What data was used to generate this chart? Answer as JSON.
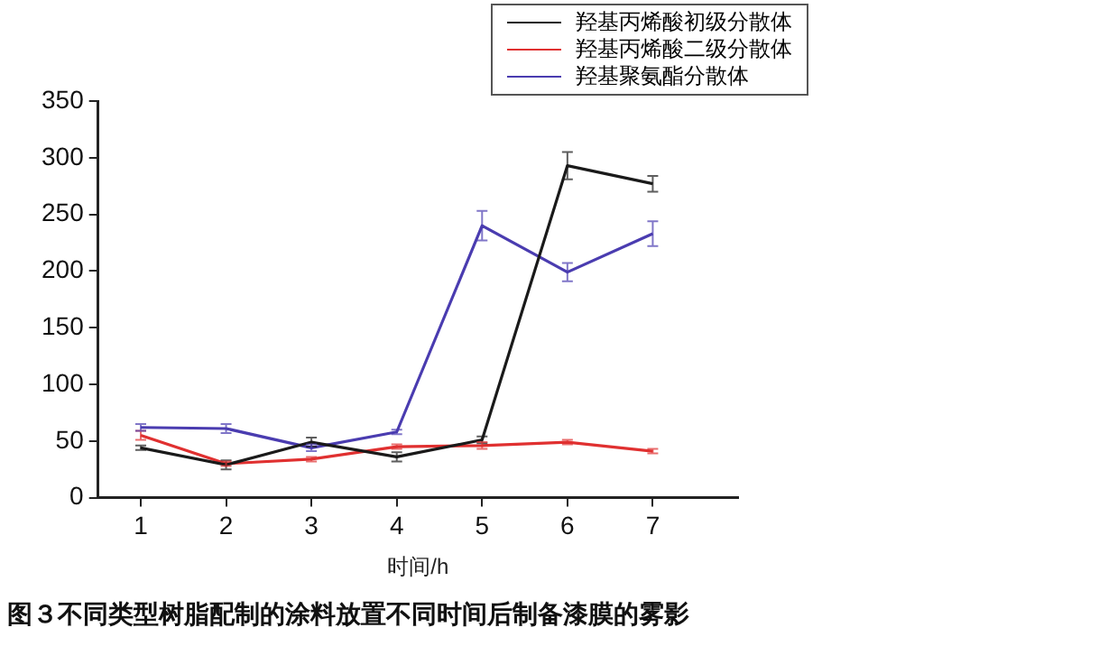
{
  "chart_data": {
    "type": "line",
    "xlabel": "时间/h",
    "x": [
      1,
      2,
      3,
      4,
      5,
      6,
      7
    ],
    "xlim": [
      0.5,
      8
    ],
    "xticks": [
      1,
      2,
      3,
      4,
      5,
      6,
      7
    ],
    "ylim": [
      0,
      350
    ],
    "yticks": [
      0,
      50,
      100,
      150,
      200,
      250,
      300,
      350
    ],
    "grid": false,
    "legend": "top right",
    "line_style": "solid",
    "series": [
      {
        "name": "羟基丙烯酸初级分散体",
        "color": "#1a1a1a",
        "values": [
          44,
          29,
          49,
          36,
          51,
          293,
          277
        ],
        "errors": [
          2,
          4,
          4,
          4,
          3,
          12,
          7
        ]
      },
      {
        "name": "羟基丙烯酸二级分散体",
        "color": "#e03030",
        "values": [
          55,
          30,
          34,
          45,
          46,
          49,
          41
        ],
        "errors": [
          4,
          2,
          2,
          2,
          3,
          2,
          2
        ]
      },
      {
        "name": "羟基聚氨酯分散体",
        "color": "#4a3cb0",
        "values": [
          62,
          61,
          44,
          58,
          240,
          199,
          233
        ],
        "errors": [
          3,
          4,
          3,
          2,
          13,
          8,
          11
        ]
      }
    ],
    "annotations": [
      "图３不同类型树脂配制的涂料放置不同时间后制备漆膜的雾影"
    ]
  }
}
